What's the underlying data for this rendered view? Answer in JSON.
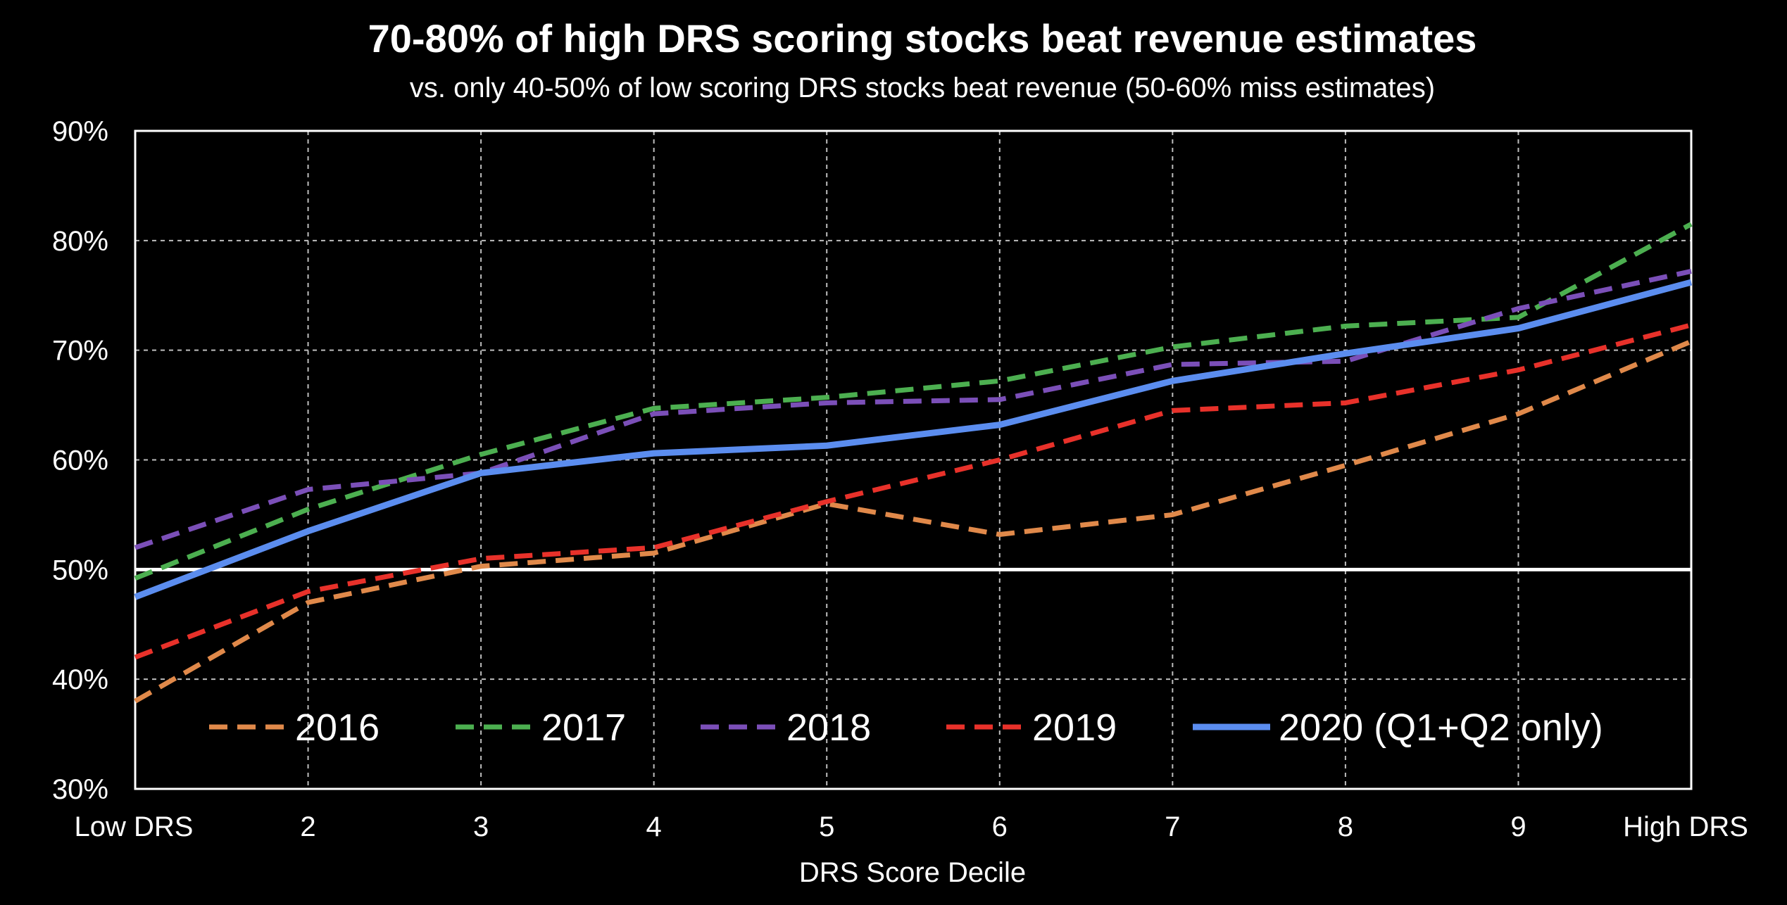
{
  "chart_data": {
    "type": "line",
    "title": "70-80% of high DRS scoring stocks beat revenue estimates",
    "subtitle": "vs. only 40-50% of low scoring DRS stocks beat revenue (50-60% miss estimates)",
    "xlabel": "DRS Score Decile",
    "ylabel": "",
    "categories": [
      "Low DRS",
      "2",
      "3",
      "4",
      "5",
      "6",
      "7",
      "8",
      "9",
      "High DRS"
    ],
    "ylim": [
      30,
      90
    ],
    "yticks": [
      30,
      40,
      50,
      60,
      70,
      80,
      90
    ],
    "ytick_labels": [
      "30%",
      "40%",
      "50%",
      "60%",
      "70%",
      "80%",
      "90%"
    ],
    "grid": true,
    "reference_line": {
      "y": 50,
      "color": "#ffffff"
    },
    "legend_position": "bottom-inside",
    "series": [
      {
        "name": "2016",
        "color": "#e0894a",
        "dash": "dashed",
        "values": [
          38.0,
          47.0,
          50.3,
          51.5,
          56.0,
          53.2,
          55.0,
          59.5,
          64.2,
          70.8
        ]
      },
      {
        "name": "2017",
        "color": "#4caf50",
        "dash": "dashed",
        "values": [
          49.2,
          55.5,
          60.5,
          64.7,
          65.7,
          67.2,
          70.3,
          72.2,
          73.0,
          81.5
        ]
      },
      {
        "name": "2018",
        "color": "#7b4fb8",
        "dash": "dashed",
        "values": [
          52.0,
          57.3,
          58.8,
          64.2,
          65.2,
          65.5,
          68.7,
          69.0,
          73.8,
          77.2
        ]
      },
      {
        "name": "2019",
        "color": "#e8312a",
        "dash": "dashed",
        "values": [
          42.0,
          48.0,
          51.0,
          52.0,
          56.2,
          60.0,
          64.5,
          65.2,
          68.2,
          72.3
        ]
      },
      {
        "name": "2020 (Q1+Q2 only)",
        "color": "#5b8def",
        "dash": "solid",
        "values": [
          47.5,
          53.5,
          58.8,
          60.6,
          61.3,
          63.2,
          67.2,
          69.7,
          72.0,
          76.2
        ]
      }
    ]
  }
}
